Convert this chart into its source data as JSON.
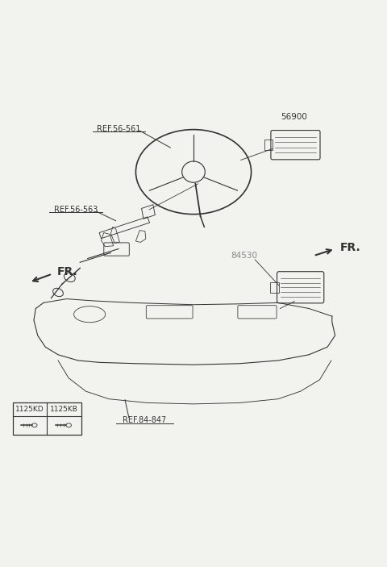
{
  "bg_color": "#f2f2ee",
  "line_color": "#333333",
  "label_color": "#555555",
  "labels": {
    "ref56561": "REF.56-561",
    "ref56563": "REF.56-563",
    "ref84847": "REF.84-847",
    "part56900": "56900",
    "part84530": "84530",
    "fr_left": "FR.",
    "fr_right": "FR.",
    "bolt1": "1125KD",
    "bolt2": "1125KB"
  },
  "font_sizes": {
    "label": 7,
    "part_number": 7.5,
    "fr_label": 10,
    "table_header": 6.5,
    "table_content": 6
  }
}
